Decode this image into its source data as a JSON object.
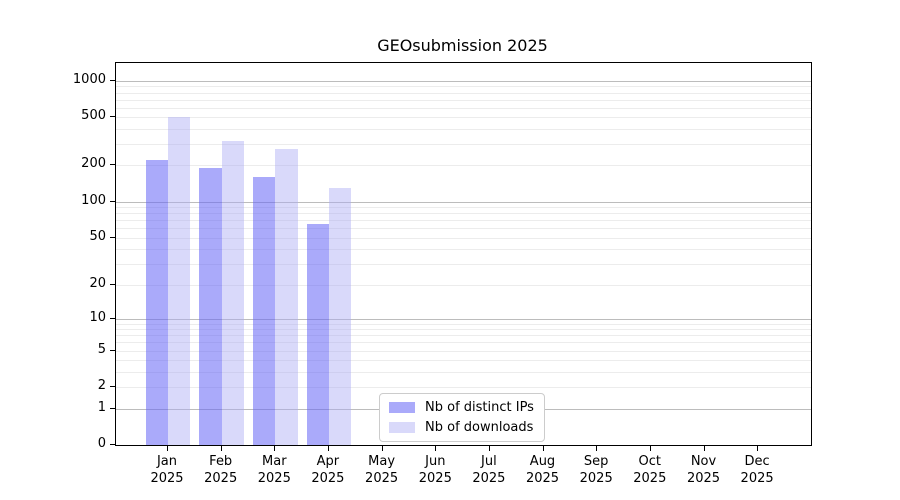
{
  "title": "GEOsubmission 2025",
  "chart_data": {
    "type": "bar",
    "title": "GEOsubmission 2025",
    "categories": [
      "Jan 2025",
      "Feb 2025",
      "Mar 2025",
      "Apr 2025",
      "May 2025",
      "Jun 2025",
      "Jul 2025",
      "Aug 2025",
      "Sep 2025",
      "Oct 2025",
      "Nov 2025",
      "Dec 2025"
    ],
    "series": [
      {
        "name": "Nb of distinct IPs",
        "color": "#a2a2f0",
        "fill": "rgba(100,100,246,0.55)",
        "values": [
          220,
          190,
          160,
          65,
          0,
          0,
          0,
          0,
          0,
          0,
          0,
          0
        ]
      },
      {
        "name": "Nb of downloads",
        "color": "#d9d9fa",
        "fill": "rgba(171,171,244,0.45)",
        "values": [
          500,
          320,
          275,
          130,
          0,
          0,
          0,
          0,
          0,
          0,
          0,
          0
        ]
      }
    ],
    "xlabel": "",
    "ylabel": "",
    "yscale": "symlog (position proportional to log10(1+value))",
    "yticks": [
      1000,
      500,
      200,
      100,
      50,
      20,
      10,
      5,
      2,
      1,
      0
    ],
    "minor_gridlines": [
      2,
      3,
      4,
      5,
      6,
      7,
      8,
      9,
      20,
      30,
      40,
      50,
      60,
      70,
      80,
      90,
      200,
      300,
      400,
      500,
      600,
      700,
      800,
      900
    ],
    "major_gridlines": [
      1,
      10,
      100,
      1000
    ],
    "ylim": [
      0,
      1400
    ],
    "grid": "horizontal, major + minor",
    "legend_position": "inside lower-center"
  },
  "colors": {
    "ips_bar": "#a2a2f0",
    "downloads_bar": "#d9d9fa",
    "major_grid": "#bcbcbc",
    "minor_grid": "#ececec",
    "axis": "#000000",
    "legend_border": "#cccccc"
  }
}
